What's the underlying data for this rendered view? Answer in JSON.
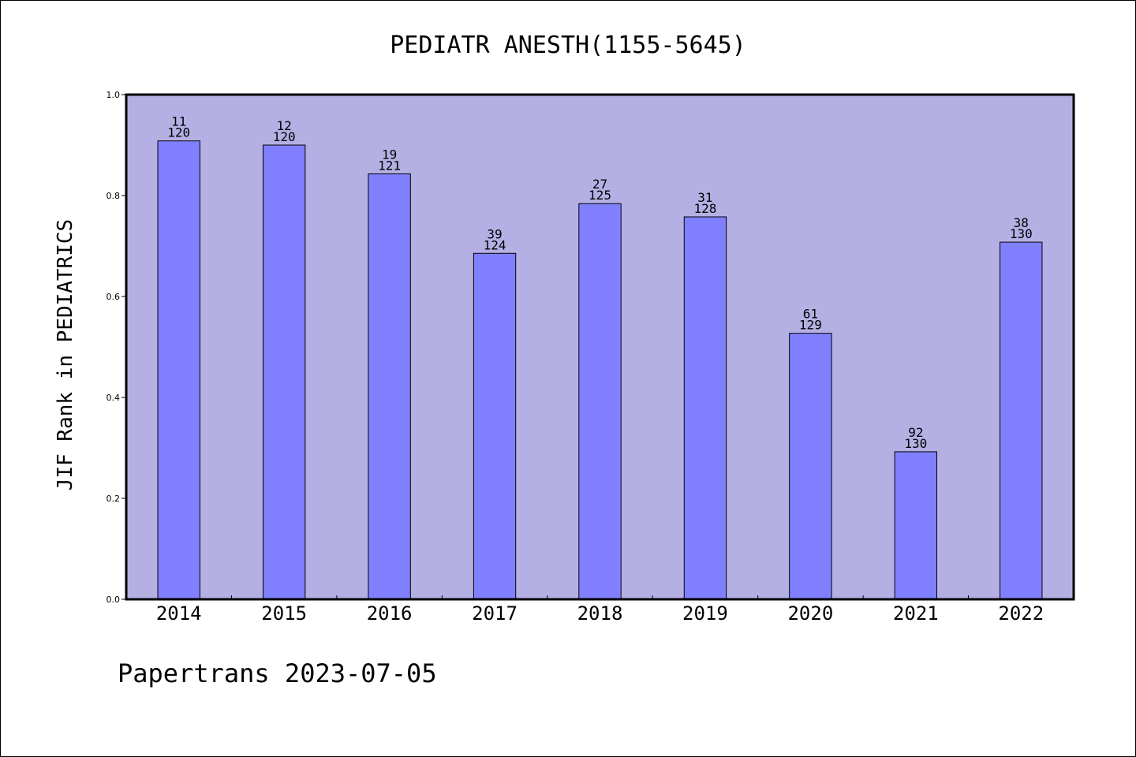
{
  "chart_data": {
    "type": "bar",
    "title": "PEDIATR ANESTH(1155-5645)",
    "xlabel": "",
    "ylabel": "JIF Rank in PEDIATRICS",
    "ylim": [
      0,
      1.0
    ],
    "yticks": [
      "0.0",
      "0.2",
      "0.4",
      "0.6",
      "0.8",
      "1.0"
    ],
    "categories": [
      "2014",
      "2015",
      "2016",
      "2017",
      "2018",
      "2019",
      "2020",
      "2021",
      "2022"
    ],
    "values": [
      0.9083,
      0.9,
      0.843,
      0.6855,
      0.784,
      0.7578,
      0.5271,
      0.2923,
      0.7077
    ],
    "rank_labels": [
      {
        "rank": "11",
        "total": "120"
      },
      {
        "rank": "12",
        "total": "120"
      },
      {
        "rank": "19",
        "total": "121"
      },
      {
        "rank": "39",
        "total": "124"
      },
      {
        "rank": "27",
        "total": "125"
      },
      {
        "rank": "31",
        "total": "128"
      },
      {
        "rank": "61",
        "total": "129"
      },
      {
        "rank": "92",
        "total": "130"
      },
      {
        "rank": "38",
        "total": "130"
      }
    ],
    "grid": false,
    "colors": {
      "plot_background": "#b5b0e4",
      "bar_fill": "#8080ff",
      "bar_stroke": "#000000"
    }
  },
  "footer": {
    "text": "Papertrans 2023-07-05"
  }
}
